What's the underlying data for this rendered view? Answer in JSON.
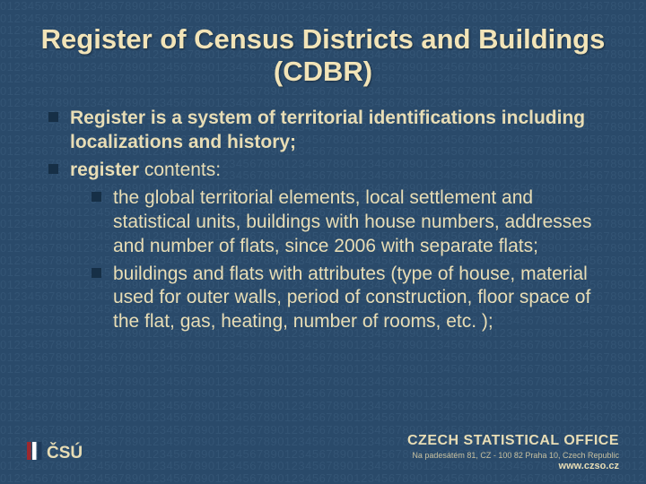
{
  "title": "Register of Census Districts and Buildings (CDBR)",
  "bullets": [
    {
      "bold": "Register is a system of territorial identifications including localizations and history;",
      "rest": ""
    },
    {
      "bold": "register",
      "rest": " contents:",
      "sub": [
        "the global territorial elements, local settlement and statistical units, buildings with house numbers, addresses and number of flats, since 2006 with separate flats;",
        "buildings and flats with attributes (type of house, material used for outer walls, period of construction, floor space of the flat, gas, heating, number of rooms, etc. );"
      ]
    }
  ],
  "footer": {
    "org": "CZECH STATISTICAL OFFICE",
    "addr": "Na padesátém 81, CZ - 100 82  Praha 10, Czech Republic",
    "url": "www.czso.cz"
  },
  "style": {
    "bg_base": "#2a4a6a",
    "bg_number_color": "#3c5d7d",
    "title_color": "#f2e4b8",
    "text_color": "#e8ddb5",
    "bullet_color": "#162f46",
    "title_fontsize": 31,
    "body_fontsize": 21,
    "footer_org_fontsize": 16,
    "footer_addr_fontsize": 9,
    "footer_url_fontsize": 11,
    "logo": {
      "bars": [
        "#9c292f",
        "#ffffff",
        "#1e3a5a"
      ],
      "text": "ČSÚ",
      "text_color": "#e8ddb5"
    },
    "number_pattern": "0123456789"
  }
}
